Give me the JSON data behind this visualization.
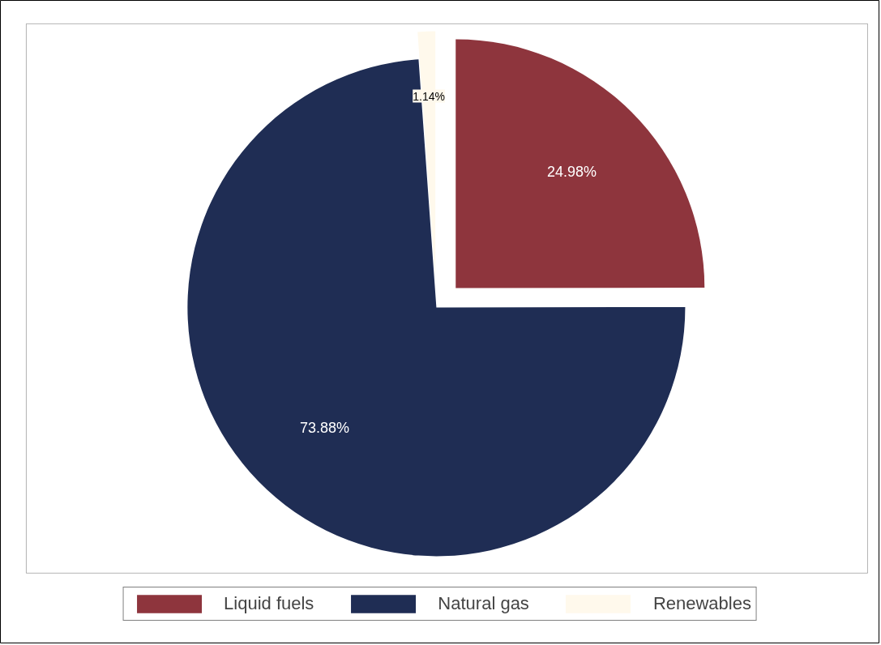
{
  "chart_data": {
    "type": "pie",
    "categories": [
      "Liquid fuels",
      "Natural gas",
      "Renewables"
    ],
    "values": [
      24.98,
      73.88,
      1.14
    ],
    "colors": [
      "#8e353d",
      "#1f2d54",
      "#fff9ec"
    ],
    "value_labels": [
      "24.98%",
      "73.88%",
      "1.14%"
    ],
    "legend": "bottom"
  }
}
